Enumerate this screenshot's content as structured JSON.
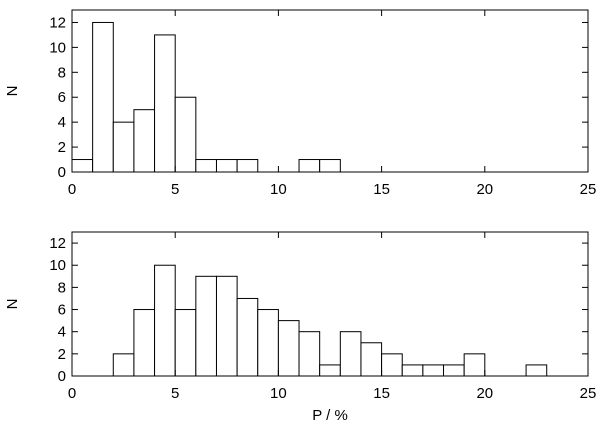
{
  "chart_data": [
    {
      "type": "bar",
      "xlabel": "",
      "ylabel": "N",
      "xlim": [
        0,
        25
      ],
      "ylim": [
        0,
        13
      ],
      "xticks": [
        0,
        5,
        10,
        15,
        20,
        25
      ],
      "yticks": [
        0,
        2,
        4,
        6,
        8,
        10,
        12
      ],
      "bin_width": 1,
      "bins": [
        {
          "x": 0,
          "value": 1
        },
        {
          "x": 1,
          "value": 12
        },
        {
          "x": 2,
          "value": 4
        },
        {
          "x": 3,
          "value": 5
        },
        {
          "x": 4,
          "value": 11
        },
        {
          "x": 5,
          "value": 6
        },
        {
          "x": 6,
          "value": 1
        },
        {
          "x": 7,
          "value": 1
        },
        {
          "x": 8,
          "value": 1
        },
        {
          "x": 11,
          "value": 1
        },
        {
          "x": 12,
          "value": 1
        }
      ]
    },
    {
      "type": "bar",
      "xlabel": "P / %",
      "ylabel": "N",
      "xlim": [
        0,
        25
      ],
      "ylim": [
        0,
        13
      ],
      "xticks": [
        0,
        5,
        10,
        15,
        20,
        25
      ],
      "yticks": [
        0,
        2,
        4,
        6,
        8,
        10,
        12
      ],
      "bin_width": 1,
      "bins": [
        {
          "x": 2,
          "value": 2
        },
        {
          "x": 3,
          "value": 6
        },
        {
          "x": 4,
          "value": 10
        },
        {
          "x": 5,
          "value": 6
        },
        {
          "x": 6,
          "value": 9
        },
        {
          "x": 7,
          "value": 9
        },
        {
          "x": 8,
          "value": 7
        },
        {
          "x": 9,
          "value": 6
        },
        {
          "x": 10,
          "value": 5
        },
        {
          "x": 11,
          "value": 4
        },
        {
          "x": 12,
          "value": 1
        },
        {
          "x": 13,
          "value": 4
        },
        {
          "x": 14,
          "value": 3
        },
        {
          "x": 15,
          "value": 2
        },
        {
          "x": 16,
          "value": 1
        },
        {
          "x": 17,
          "value": 1
        },
        {
          "x": 18,
          "value": 1
        },
        {
          "x": 19,
          "value": 2
        },
        {
          "x": 22,
          "value": 1
        }
      ]
    }
  ]
}
